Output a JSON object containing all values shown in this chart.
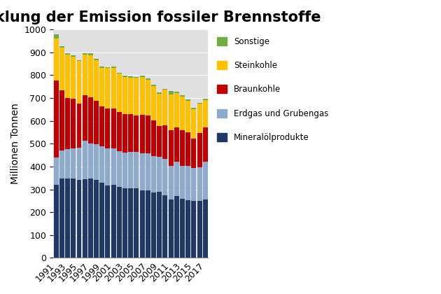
{
  "title": "Entwicklung der Emission fossiler Brennstoffe",
  "ylabel": "Millionen Tonnen",
  "years": [
    1991,
    1992,
    1993,
    1994,
    1995,
    1996,
    1997,
    1998,
    1999,
    2000,
    2001,
    2002,
    2003,
    2004,
    2005,
    2006,
    2007,
    2008,
    2009,
    2010,
    2011,
    2012,
    2013,
    2014,
    2015,
    2016,
    2017
  ],
  "mineraloel": [
    320,
    347,
    347,
    348,
    342,
    345,
    347,
    342,
    330,
    318,
    320,
    310,
    305,
    305,
    305,
    295,
    295,
    285,
    288,
    273,
    255,
    270,
    258,
    252,
    248,
    250,
    257
  ],
  "erdgas": [
    120,
    122,
    128,
    130,
    140,
    168,
    155,
    155,
    158,
    160,
    160,
    158,
    155,
    158,
    158,
    162,
    162,
    160,
    155,
    160,
    148,
    152,
    145,
    152,
    145,
    148,
    165
  ],
  "braunkohle": [
    338,
    265,
    225,
    218,
    195,
    200,
    200,
    190,
    175,
    175,
    175,
    170,
    170,
    168,
    160,
    168,
    165,
    158,
    135,
    148,
    155,
    150,
    155,
    145,
    130,
    148,
    148
  ],
  "steinkohle": [
    183,
    188,
    190,
    185,
    185,
    178,
    185,
    180,
    170,
    178,
    178,
    168,
    162,
    158,
    165,
    168,
    158,
    150,
    140,
    155,
    158,
    150,
    148,
    140,
    128,
    128,
    122
  ],
  "sonstige": [
    17,
    5,
    5,
    6,
    5,
    5,
    10,
    5,
    5,
    5,
    5,
    5,
    5,
    5,
    5,
    5,
    5,
    5,
    5,
    5,
    15,
    5,
    5,
    5,
    5,
    5,
    5
  ],
  "colors": {
    "mineraloel": "#1F3864",
    "erdgas": "#8EAACC",
    "braunkohle": "#C00000",
    "steinkohle": "#FFC000",
    "sonstige": "#70AD47"
  },
  "ylim": [
    0,
    1000
  ],
  "yticks": [
    0,
    100,
    200,
    300,
    400,
    500,
    600,
    700,
    800,
    900,
    1000
  ],
  "background_color": "#E0E0E0",
  "title_fontsize": 15,
  "axis_fontsize": 10,
  "grid_color": "#FFFFFF"
}
